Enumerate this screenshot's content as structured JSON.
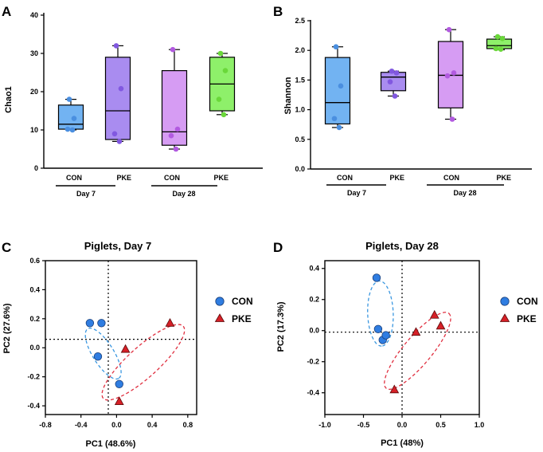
{
  "chart_data": [
    {
      "panel_label": "A",
      "type": "box",
      "ylabel": "Chao1",
      "ylim": [
        0,
        40
      ],
      "yticks": [
        0,
        10,
        20,
        30,
        40
      ],
      "categories": [
        "CON",
        "PKE",
        "CON",
        "PKE"
      ],
      "groups": [
        "Day 7",
        "Day 28"
      ],
      "colors": [
        "#72b3f2",
        "#a98cf0",
        "#d69cf3",
        "#8ef06a"
      ],
      "point_colors": [
        "#4a8fe0",
        "#8158e0",
        "#b25ae0",
        "#6ad83a"
      ],
      "boxes": [
        {
          "min": 10,
          "q1": 10.2,
          "median": 11.5,
          "q3": 16.5,
          "max": 18,
          "points": [
            18,
            13,
            10.2,
            10
          ]
        },
        {
          "min": 7,
          "q1": 7.5,
          "median": 15,
          "q3": 29,
          "max": 32,
          "points": [
            32,
            20.8,
            9,
            7
          ]
        },
        {
          "min": 5,
          "q1": 6,
          "median": 9.5,
          "q3": 25.5,
          "max": 31,
          "points": [
            31,
            10.2,
            8.5,
            5
          ]
        },
        {
          "min": 14,
          "q1": 15,
          "median": 22,
          "q3": 29,
          "max": 30,
          "points": [
            30,
            25.5,
            18,
            14
          ]
        }
      ]
    },
    {
      "panel_label": "B",
      "type": "box",
      "ylabel": "Shannon",
      "ylim": [
        0,
        2.5
      ],
      "yticks": [
        "0.0",
        "0.5",
        "1.0",
        "1.5",
        "2.0",
        "2.5"
      ],
      "categories": [
        "CON",
        "PKE",
        "CON",
        "PKE"
      ],
      "groups": [
        "Day 7",
        "Day 28"
      ],
      "colors": [
        "#72b3f2",
        "#a98cf0",
        "#d69cf3",
        "#8ef06a"
      ],
      "point_colors": [
        "#4a8fe0",
        "#8158e0",
        "#b25ae0",
        "#6ad83a"
      ],
      "boxes": [
        {
          "min": 0.7,
          "q1": 0.76,
          "median": 1.12,
          "q3": 1.88,
          "max": 2.06,
          "points": [
            2.06,
            1.4,
            0.85,
            0.7
          ]
        },
        {
          "min": 1.23,
          "q1": 1.32,
          "median": 1.55,
          "q3": 1.63,
          "max": 1.65,
          "points": [
            1.65,
            1.62,
            1.47,
            1.23
          ]
        },
        {
          "min": 0.84,
          "q1": 1.03,
          "median": 1.58,
          "q3": 2.15,
          "max": 2.35,
          "points": [
            2.35,
            1.62,
            1.57,
            0.84
          ]
        },
        {
          "min": 2.01,
          "q1": 2.03,
          "median": 2.08,
          "q3": 2.19,
          "max": 2.23,
          "points": [
            2.23,
            2.2,
            2.03,
            2.02
          ]
        }
      ]
    },
    {
      "panel_label": "C",
      "type": "scatter",
      "title": "Piglets, Day 7",
      "xlabel": "PC1 (48.6%)",
      "ylabel": "PC2 (27.6%)",
      "xlim": [
        -0.8,
        0.9
      ],
      "ylim": [
        -0.46,
        0.6
      ],
      "xticks": [
        "-0.8",
        "-0.4",
        "0.0",
        "0.4",
        "0.8"
      ],
      "yticks": [
        "-0.4",
        "-0.2",
        "0.0",
        "0.2",
        "0.4",
        "0.6"
      ],
      "series": [
        {
          "name": "CON",
          "marker": "circle",
          "color": "#2f7de1",
          "x": [
            -0.3,
            -0.17,
            -0.21,
            0.03
          ],
          "y": [
            0.17,
            0.17,
            -0.06,
            -0.25
          ]
        },
        {
          "name": "PKE",
          "marker": "triangle",
          "color": "#d62027",
          "x": [
            0.1,
            0.6,
            0.03
          ],
          "y": [
            -0.01,
            0.17,
            -0.37
          ]
        }
      ],
      "ellipses": [
        {
          "color": "#3a97e0",
          "cx": -0.15,
          "cy": -0.04,
          "rx": 0.25,
          "ry": 0.09,
          "angle_deg": -58
        },
        {
          "color": "#e03040",
          "cx": 0.3,
          "cy": -0.1,
          "rx": 0.46,
          "ry": 0.13,
          "angle_deg": 42
        }
      ]
    },
    {
      "panel_label": "D",
      "type": "scatter",
      "title": "Piglets, Day 28",
      "xlabel": "PC1 (48%)",
      "ylabel": "PC2 (17.3%)",
      "xlim": [
        -1.0,
        1.0
      ],
      "ylim": [
        -0.54,
        0.45
      ],
      "xticks": [
        "-1.0",
        "-0.5",
        "0.0",
        "0.5",
        "1.0"
      ],
      "yticks": [
        "-0.4",
        "-0.2",
        "0.0",
        "0.2",
        "0.4"
      ],
      "series": [
        {
          "name": "CON",
          "marker": "circle",
          "color": "#2f7de1",
          "x": [
            -0.33,
            -0.31,
            -0.25,
            -0.21
          ],
          "y": [
            0.34,
            0.01,
            -0.06,
            -0.03
          ]
        },
        {
          "name": "PKE",
          "marker": "triangle",
          "color": "#d62027",
          "x": [
            0.42,
            0.5,
            0.18,
            -0.1
          ],
          "y": [
            0.1,
            0.03,
            -0.01,
            -0.38
          ]
        }
      ],
      "ellipses": [
        {
          "color": "#3a97e0",
          "cx": -0.28,
          "cy": 0.11,
          "rx": 0.28,
          "ry": 0.11,
          "angle_deg": -88
        },
        {
          "color": "#e03040",
          "cx": 0.2,
          "cy": -0.13,
          "rx": 0.42,
          "ry": 0.12,
          "angle_deg": 50
        }
      ]
    }
  ]
}
